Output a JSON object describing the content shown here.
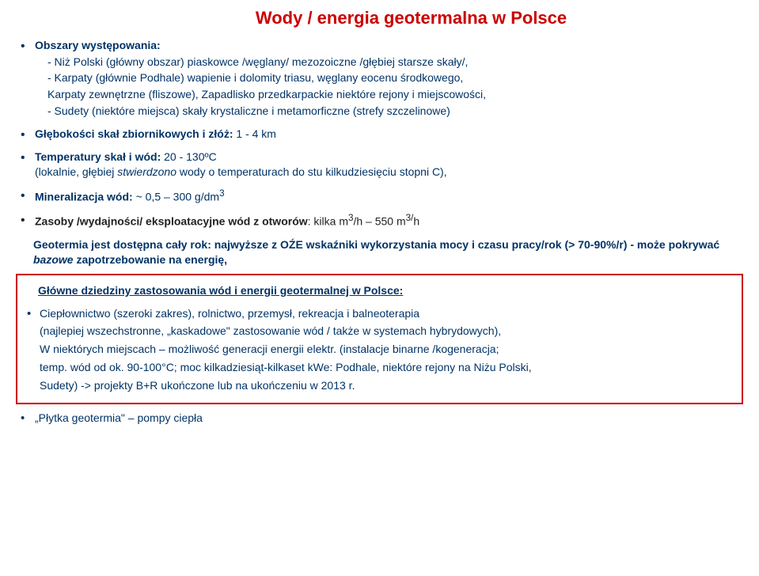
{
  "colors": {
    "title": "#cc0000",
    "text_dark": "#333333",
    "text_navy": "#003366",
    "text_black": "#222222",
    "box_border": "#cc0000"
  },
  "title": "Wody / energia geotermalna w Polsce",
  "b1_head": "Obszary występowania:",
  "b1_l1": "- Niż Polski (główny obszar) piaskowce /węglany/ mezozoiczne /głębiej starsze skały/,",
  "b1_l2": "- Karpaty (głównie Podhale) wapienie i dolomity triasu, węglany eocenu środkowego,",
  "b1_l3": "  Karpaty zewnętrzne (fliszowe), Zapadlisko przedkarpackie niektóre rejony i miejscowości,",
  "b1_l4": "- Sudety (niektóre miejsca) skały krystaliczne i metamorficzne (strefy szczelinowe)",
  "b2_a": "Głębokości skał zbiornikowych i złóż:",
  "b2_b": " 1 - 4 km",
  "b3_a": "Temperatury skał i wód: ",
  "b3_b": "20 - 130ºC",
  "b3_c": "(lokalnie, głębiej ",
  "b3_d": "stwierdzono",
  "b3_e": " wody o temperaturach do stu kilkudziesięciu stopni C),",
  "b4_a": "Mineralizacja wód: ",
  "b4_b": "~ 0,5 – 300 g/dm",
  "b4_sup": "3",
  "b5_a": "Zasoby /wydajności/ eksploatacyjne wód z otworów",
  "b5_b": ": kilka m",
  "b5_s1": "3",
  "b5_c": "/h – 550 m",
  "b5_s2": "3/",
  "b5_d": "h",
  "geo_a": "Geotermia jest dostępna cały rok:  najwyższe z OŹE wskaźniki wykorzystania mocy i czasu pracy/rok (> 70-90%/r) - może pokrywać ",
  "geo_b": "bazowe",
  "geo_c": " zapotrzebowanie na energię,",
  "box_title": "Główne dziedziny zastosowania wód i energii geotermalnej w Polsce:",
  "box_1": "Ciepłownictwo (szeroki zakres), rolnictwo, przemysł, rekreacja i balneoterapia",
  "box_2": "(najlepiej wszechstronne, „kaskadowe\" zastosowanie wód / także w systemach hybrydowych),",
  "box_3": "W niektórych miejscach – możliwość generacji energii elektr. (instalacje binarne /kogeneracja;",
  "box_4": "temp. wód od ok. 90-100°C; moc kilkadziesiąt-kilkaset kWe: Podhale, niektóre rejony na Niżu Polski,",
  "box_5": "Sudety) -> projekty B+R ukończone lub na ukończeniu w 2013 r.",
  "last": "„Płytka geotermia\" – pompy ciepła"
}
